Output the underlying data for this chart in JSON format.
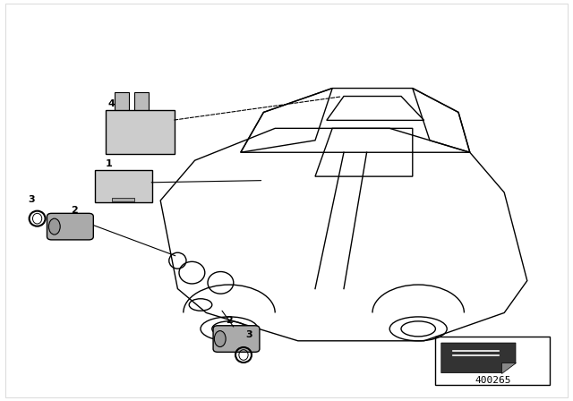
{
  "background_color": "#ffffff",
  "figure_width": 6.4,
  "figure_height": 4.48,
  "dpi": 100,
  "part_number": "400265",
  "line_color": "#000000",
  "label_fontsize": 8,
  "part_number_fontsize": 8
}
